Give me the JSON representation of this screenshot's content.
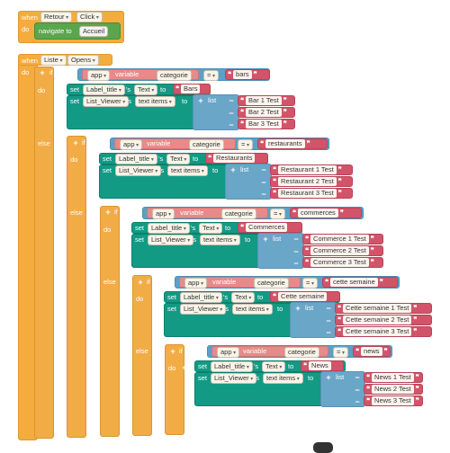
{
  "event_retour": {
    "when": "when",
    "component": "Retour",
    "event": "Click",
    "do": "do",
    "action": "navigate to",
    "target": "Accueil"
  },
  "event_liste": {
    "when": "when",
    "component": "Liste",
    "event": "Opens",
    "do": "do"
  },
  "kw": {
    "if": "if",
    "do": "do",
    "else": "else",
    "app": "app",
    "variable": "variable",
    "set": "set",
    "to": "to",
    "s": "'s",
    "list": "list",
    "eq": "="
  },
  "setter_label": {
    "component": "Label_title",
    "prop": "Text"
  },
  "setter_list": {
    "component": "List_Viewer",
    "prop": "text items"
  },
  "var_name": "categorie",
  "branches": [
    {
      "compare": "bars",
      "title": "Bars",
      "items": [
        "Bar 1 Test",
        "Bar 2 Test",
        "Bar 3 Test"
      ]
    },
    {
      "compare": "restaurants",
      "title": "Restaurants",
      "items": [
        "Restaurant 1 Test",
        "Restaurant 2 Test",
        "Restaurant 3 Test"
      ]
    },
    {
      "compare": "commerces",
      "title": "Commerces",
      "items": [
        "Commerce 1 Test",
        "Commerce 2 Test",
        "Commerce 3 Test"
      ]
    },
    {
      "compare": "cette semaine",
      "title": "Cette semaine",
      "items": [
        "Cette semaine 1 Test",
        "Cette semaine 2 Test",
        "Cette semaine 3 Test"
      ]
    },
    {
      "compare": "news",
      "title": "News",
      "items": [
        "News 1 Test",
        "News 2 Test",
        "News 3 Test"
      ]
    }
  ]
}
